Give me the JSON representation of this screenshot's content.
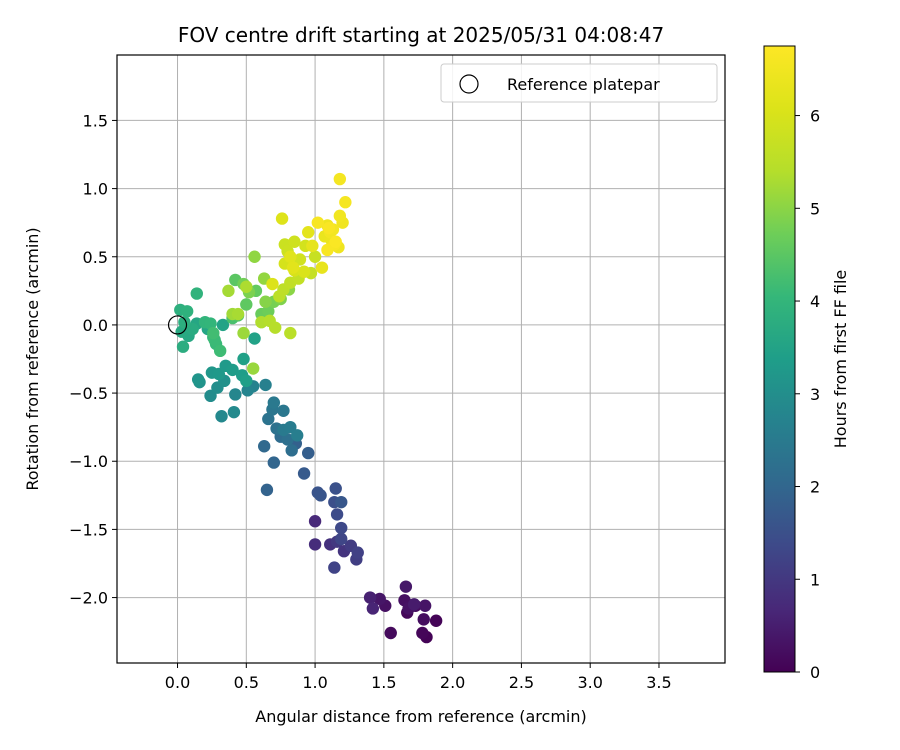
{
  "chart_data": {
    "type": "scatter",
    "title": "FOV centre drift starting at 2025/05/31 04:08:47",
    "xlabel": "Angular distance from reference (arcmin)",
    "ylabel": "Rotation from reference (arcmin)",
    "xlim": [
      -0.44,
      3.98
    ],
    "ylim": [
      -2.48,
      1.98
    ],
    "x_ticks": [
      0.0,
      0.5,
      1.0,
      1.5,
      2.0,
      2.5,
      3.0,
      3.5
    ],
    "x_tick_labels": [
      "0.0",
      "0.5",
      "1.0",
      "1.5",
      "2.0",
      "2.5",
      "3.0",
      "3.5"
    ],
    "y_ticks": [
      -2.0,
      -1.5,
      -1.0,
      -0.5,
      0.0,
      0.5,
      1.0,
      1.5
    ],
    "y_tick_labels": [
      "−2.0",
      "−1.5",
      "−1.0",
      "−0.5",
      "0.0",
      "0.5",
      "1.0",
      "1.5"
    ],
    "grid": true,
    "legend": {
      "position": "top-right",
      "label": "Reference platepar"
    },
    "reference_point": {
      "x": 0.0,
      "y": 0.0
    },
    "colorbar": {
      "label": "Hours from first FF file",
      "colormap": "viridis",
      "range": [
        0,
        6.75
      ],
      "ticks": [
        0,
        1,
        2,
        3,
        4,
        5,
        6
      ],
      "tick_labels": [
        "0",
        "1",
        "2",
        "3",
        "4",
        "5",
        "6"
      ]
    },
    "points": [
      [
        1.81,
        -2.29,
        0.03
      ],
      [
        1.88,
        -2.17,
        0.06
      ],
      [
        1.78,
        -2.26,
        0.09
      ],
      [
        1.67,
        -2.11,
        0.12
      ],
      [
        1.55,
        -2.26,
        0.15
      ],
      [
        1.73,
        -2.06,
        0.18
      ],
      [
        1.79,
        -2.16,
        0.21
      ],
      [
        1.65,
        -2.02,
        0.24
      ],
      [
        1.51,
        -2.06,
        0.27
      ],
      [
        1.68,
        -2.08,
        0.3
      ],
      [
        1.8,
        -2.06,
        0.33
      ],
      [
        1.47,
        -2.01,
        0.36
      ],
      [
        1.66,
        -1.92,
        0.39
      ],
      [
        1.72,
        -2.05,
        0.45
      ],
      [
        1.4,
        -2.0,
        0.55
      ],
      [
        1.42,
        -2.08,
        0.62
      ],
      [
        1.0,
        -1.44,
        0.7
      ],
      [
        1.0,
        -1.61,
        0.78
      ],
      [
        1.11,
        -1.61,
        0.86
      ],
      [
        1.21,
        -1.66,
        0.92
      ],
      [
        1.16,
        -1.59,
        1.0
      ],
      [
        1.26,
        -1.62,
        1.08
      ],
      [
        1.3,
        -1.72,
        1.12
      ],
      [
        1.31,
        -1.67,
        1.18
      ],
      [
        1.14,
        -1.78,
        1.22
      ],
      [
        1.19,
        -1.57,
        1.28
      ],
      [
        1.19,
        -1.49,
        1.35
      ],
      [
        1.16,
        -1.39,
        1.42
      ],
      [
        1.14,
        -1.3,
        1.48
      ],
      [
        1.15,
        -1.2,
        1.52
      ],
      [
        1.02,
        -1.23,
        1.58
      ],
      [
        1.04,
        -1.25,
        1.62
      ],
      [
        1.19,
        -1.3,
        1.66
      ],
      [
        0.92,
        -1.09,
        1.72
      ],
      [
        0.95,
        -0.94,
        1.8
      ],
      [
        0.86,
        -0.87,
        1.88
      ],
      [
        0.65,
        -1.21,
        1.92
      ],
      [
        0.7,
        -1.01,
        1.98
      ],
      [
        0.63,
        -0.89,
        2.05
      ],
      [
        0.75,
        -0.82,
        2.12
      ],
      [
        0.83,
        -0.92,
        2.18
      ],
      [
        0.8,
        -0.84,
        2.22
      ],
      [
        0.72,
        -0.76,
        2.28
      ],
      [
        0.66,
        -0.69,
        2.32
      ],
      [
        0.69,
        -0.62,
        2.38
      ],
      [
        0.77,
        -0.63,
        2.42
      ],
      [
        0.7,
        -0.57,
        2.46
      ],
      [
        0.77,
        -0.77,
        2.5
      ],
      [
        0.82,
        -0.75,
        2.55
      ],
      [
        0.87,
        -0.81,
        2.6
      ],
      [
        0.64,
        -0.44,
        2.65
      ],
      [
        0.55,
        -0.45,
        2.7
      ],
      [
        0.51,
        -0.48,
        2.75
      ],
      [
        0.42,
        -0.51,
        2.8
      ],
      [
        0.32,
        -0.67,
        2.85
      ],
      [
        0.41,
        -0.64,
        2.9
      ],
      [
        0.24,
        -0.52,
        2.95
      ],
      [
        0.29,
        -0.46,
        3.0
      ],
      [
        0.34,
        -0.41,
        3.05
      ],
      [
        0.16,
        -0.42,
        3.1
      ],
      [
        0.15,
        -0.4,
        3.15
      ],
      [
        0.25,
        -0.35,
        3.2
      ],
      [
        0.3,
        -0.36,
        3.25
      ],
      [
        0.35,
        -0.3,
        3.28
      ],
      [
        0.4,
        -0.33,
        3.32
      ],
      [
        0.47,
        -0.37,
        3.36
      ],
      [
        0.5,
        -0.41,
        3.4
      ],
      [
        0.48,
        -0.25,
        3.44
      ],
      [
        0.56,
        -0.1,
        3.48
      ],
      [
        0.33,
        0.0,
        3.52
      ],
      [
        0.22,
        -0.03,
        3.56
      ],
      [
        0.14,
        0.01,
        3.6
      ],
      [
        0.08,
        -0.08,
        3.64
      ],
      [
        0.03,
        -0.05,
        3.68
      ],
      [
        0.11,
        -0.03,
        3.72
      ],
      [
        0.04,
        -0.16,
        3.76
      ],
      [
        0.05,
        0.02,
        3.8
      ],
      [
        0.02,
        0.11,
        3.84
      ],
      [
        0.07,
        0.1,
        3.88
      ],
      [
        0.14,
        0.23,
        3.92
      ],
      [
        0.2,
        0.02,
        3.96
      ],
      [
        0.24,
        0.01,
        4.0
      ],
      [
        0.26,
        -0.09,
        4.04
      ],
      [
        0.28,
        -0.14,
        4.08
      ],
      [
        0.27,
        -0.11,
        4.12
      ],
      [
        0.31,
        -0.19,
        4.16
      ],
      [
        0.26,
        -0.06,
        4.2
      ],
      [
        0.4,
        0.05,
        4.3
      ],
      [
        0.44,
        0.07,
        4.4
      ],
      [
        0.42,
        0.33,
        4.5
      ],
      [
        0.5,
        0.15,
        4.55
      ],
      [
        0.57,
        0.25,
        4.6
      ],
      [
        0.61,
        0.08,
        4.65
      ],
      [
        0.66,
        0.1,
        4.7
      ],
      [
        0.48,
        0.3,
        4.75
      ],
      [
        0.7,
        0.17,
        4.8
      ],
      [
        0.52,
        0.24,
        4.85
      ],
      [
        0.75,
        0.19,
        4.9
      ],
      [
        0.64,
        0.17,
        4.95
      ],
      [
        0.81,
        0.26,
        5.0
      ],
      [
        0.56,
        0.5,
        5.05
      ],
      [
        0.63,
        0.34,
        5.08
      ],
      [
        0.55,
        -0.32,
        5.12
      ],
      [
        0.48,
        -0.06,
        5.16
      ],
      [
        0.4,
        0.08,
        5.2
      ],
      [
        0.37,
        0.25,
        5.25
      ],
      [
        0.44,
        0.08,
        5.28
      ],
      [
        0.5,
        0.28,
        5.32
      ],
      [
        0.61,
        0.02,
        5.36
      ],
      [
        0.67,
        0.03,
        5.4
      ],
      [
        0.71,
        -0.02,
        5.44
      ],
      [
        0.82,
        -0.06,
        5.48
      ],
      [
        0.74,
        0.21,
        5.52
      ],
      [
        0.77,
        0.26,
        5.56
      ],
      [
        0.82,
        0.31,
        5.6
      ],
      [
        0.88,
        0.34,
        5.64
      ],
      [
        0.97,
        0.38,
        5.68
      ],
      [
        1.0,
        0.5,
        5.72
      ],
      [
        0.78,
        0.59,
        5.76
      ],
      [
        0.8,
        0.54,
        5.8
      ],
      [
        0.85,
        0.61,
        5.84
      ],
      [
        0.89,
        0.48,
        5.88
      ],
      [
        0.93,
        0.58,
        5.92
      ],
      [
        0.78,
        0.45,
        5.96
      ],
      [
        0.85,
        0.4,
        6.0
      ],
      [
        0.92,
        0.39,
        6.04
      ],
      [
        0.69,
        0.3,
        6.08
      ],
      [
        0.76,
        0.78,
        6.12
      ],
      [
        0.82,
        0.5,
        6.16
      ],
      [
        0.84,
        0.42,
        6.2
      ],
      [
        0.95,
        0.68,
        6.24
      ],
      [
        0.98,
        0.58,
        6.28
      ],
      [
        1.05,
        0.42,
        6.32
      ],
      [
        1.07,
        0.65,
        6.36
      ],
      [
        1.12,
        0.62,
        6.4
      ],
      [
        1.09,
        0.73,
        6.44
      ],
      [
        1.17,
        0.57,
        6.46
      ],
      [
        1.2,
        0.75,
        6.48
      ],
      [
        1.18,
        0.8,
        6.5
      ],
      [
        1.11,
        0.68,
        6.52
      ],
      [
        1.13,
        0.7,
        6.54
      ],
      [
        1.18,
        1.07,
        6.56
      ],
      [
        1.22,
        0.9,
        6.58
      ],
      [
        1.14,
        0.59,
        6.6
      ],
      [
        1.02,
        0.75,
        6.62
      ],
      [
        1.09,
        0.55,
        6.64
      ],
      [
        1.1,
        0.71,
        6.66
      ],
      [
        1.15,
        0.61,
        6.68
      ]
    ]
  }
}
